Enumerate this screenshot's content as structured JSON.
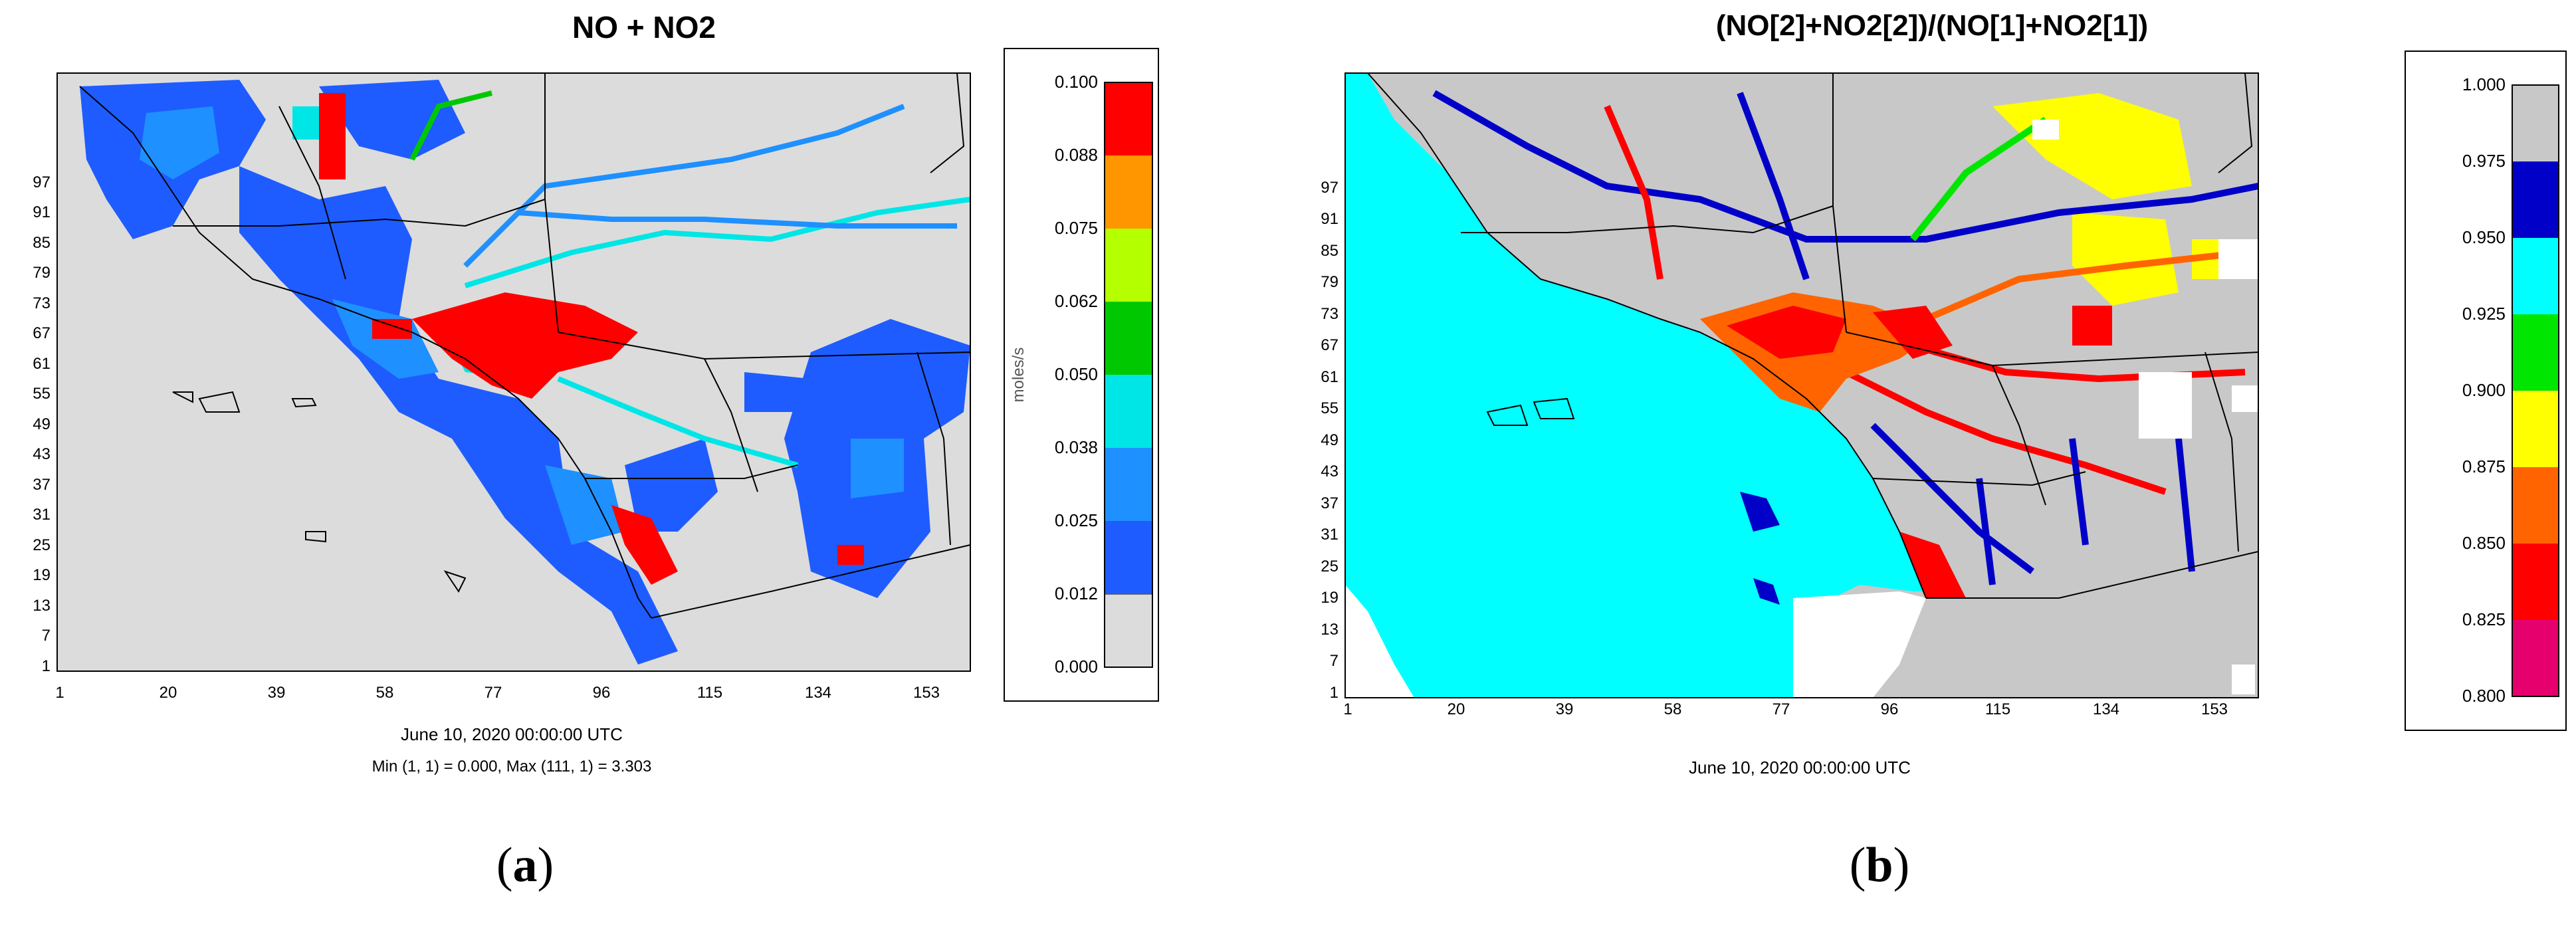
{
  "panels": [
    {
      "id": "a",
      "title": "NO + NO2",
      "x_ticks": [
        "1",
        "20",
        "39",
        "58",
        "77",
        "96",
        "115",
        "134",
        "153"
      ],
      "y_ticks": [
        "1",
        "7",
        "13",
        "19",
        "25",
        "31",
        "37",
        "43",
        "49",
        "55",
        "61",
        "67",
        "73",
        "79",
        "85",
        "91",
        "97"
      ],
      "legend": {
        "unit_label": "moles/s",
        "ticks": [
          "0.000",
          "0.012",
          "0.025",
          "0.038",
          "0.050",
          "0.062",
          "0.075",
          "0.088",
          "0.100"
        ],
        "colors": [
          "#dcdcdc",
          "#1e5cff",
          "#1e90ff",
          "#00e6e6",
          "#00c800",
          "#b4ff00",
          "#ff9600",
          "#ff0000"
        ]
      },
      "date_text": "June 10, 2020 00:00:00 UTC",
      "minmax_text": "Min (1, 1) = 0.000, Max (111, 1) = 3.303",
      "label_letter": "a"
    },
    {
      "id": "b",
      "title": "(NO[2]+NO2[2])/(NO[1]+NO2[1])",
      "x_ticks": [
        "1",
        "20",
        "39",
        "58",
        "77",
        "96",
        "115",
        "134",
        "153"
      ],
      "y_ticks": [
        "1",
        "7",
        "13",
        "19",
        "25",
        "31",
        "37",
        "43",
        "49",
        "55",
        "61",
        "67",
        "73",
        "79",
        "85",
        "91",
        "97"
      ],
      "legend": {
        "ticks": [
          "0.800",
          "0.825",
          "0.850",
          "0.875",
          "0.900",
          "0.925",
          "0.950",
          "0.975",
          "1.000"
        ],
        "colors": [
          "#e6006e",
          "#ff0000",
          "#ff6400",
          "#ffff00",
          "#00e600",
          "#00ffff",
          "#0000c8",
          "#c8c8c8"
        ]
      },
      "date_text": "June 10, 2020 00:00:00 UTC",
      "label_letter": "b"
    }
  ]
}
